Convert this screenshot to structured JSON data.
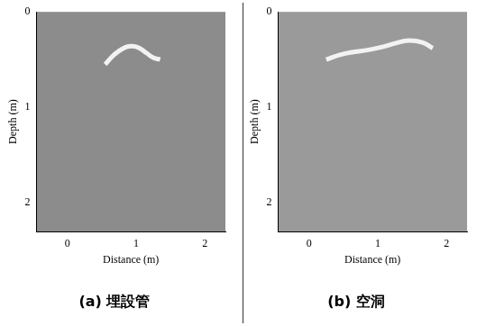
{
  "chart_data": [
    {
      "type": "line",
      "title": "(a) 埋設管",
      "xlabel": "Distance (m)",
      "ylabel": "Depth (m)",
      "xlim": [
        -0.45,
        2.3
      ],
      "xticks": [
        0,
        1,
        2
      ],
      "ylim": [
        2.3,
        0
      ],
      "yticks": [
        0,
        1,
        2
      ],
      "grid": false,
      "x": [
        0.55,
        0.65,
        0.75,
        0.85,
        0.95,
        1.05,
        1.15,
        1.25,
        1.35
      ],
      "series": [
        {
          "color": "#f2f2f2",
          "values": [
            0.55,
            0.47,
            0.41,
            0.37,
            0.36,
            0.38,
            0.43,
            0.48,
            0.5
          ]
        }
      ]
    },
    {
      "type": "line",
      "title": "(b) 空洞",
      "xlabel": "Distance (m)",
      "ylabel": "Depth (m)",
      "xlim": [
        -0.45,
        2.3
      ],
      "xticks": [
        0,
        1,
        2
      ],
      "ylim": [
        2.3,
        0
      ],
      "yticks": [
        0,
        1,
        2
      ],
      "grid": false,
      "x": [
        0.25,
        0.45,
        0.65,
        0.85,
        1.05,
        1.25,
        1.45,
        1.65,
        1.8
      ],
      "series": [
        {
          "color": "#f2f2f2",
          "values": [
            0.5,
            0.45,
            0.42,
            0.4,
            0.37,
            0.33,
            0.3,
            0.32,
            0.38
          ]
        }
      ]
    }
  ]
}
